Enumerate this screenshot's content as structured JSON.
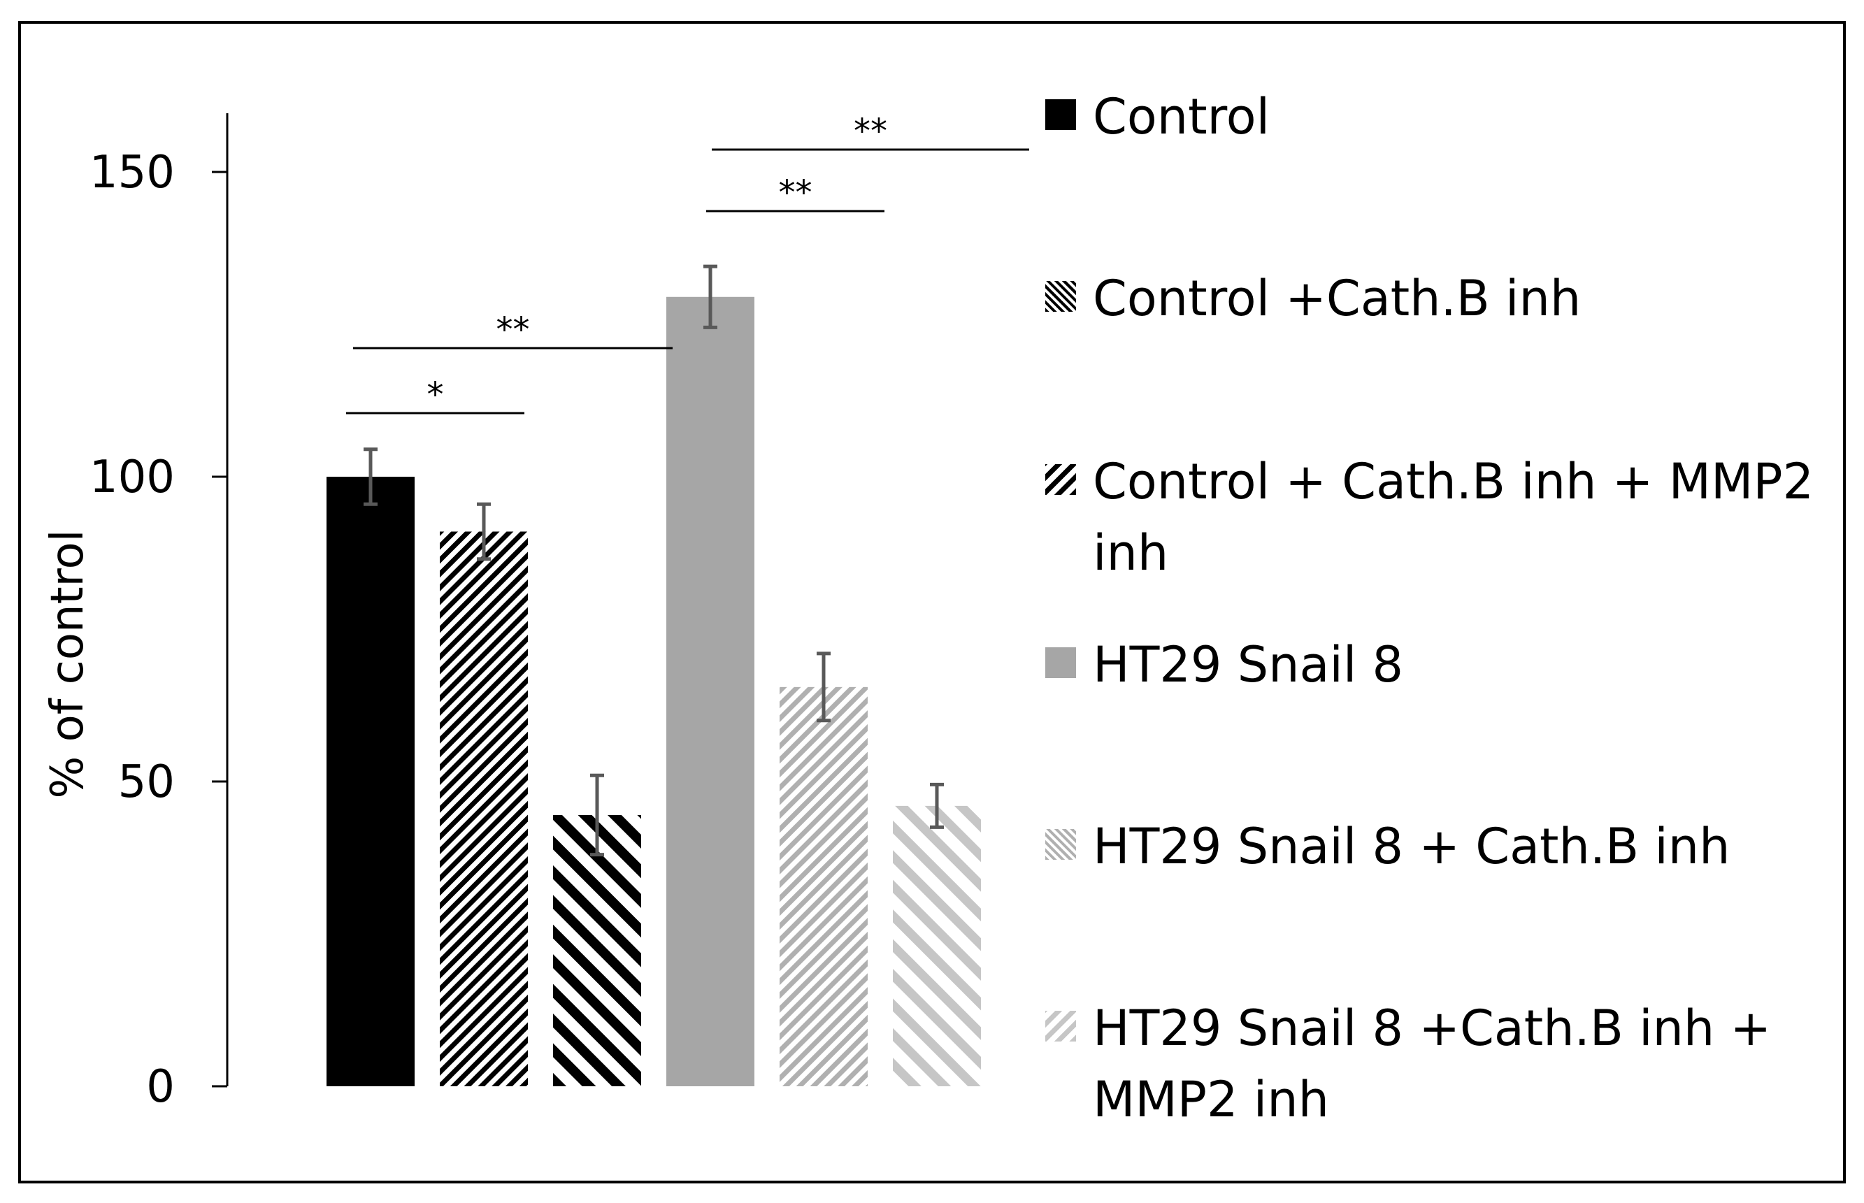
{
  "chart_data": {
    "type": "bar",
    "title": "",
    "xlabel": "",
    "ylabel": "% of control",
    "ylim": [
      0,
      160
    ],
    "yticks": [
      0,
      50,
      100,
      150
    ],
    "grid": false,
    "legend_position": "right",
    "series": [
      {
        "name": "Control",
        "value": 100,
        "error": 4.5,
        "color": "#000000",
        "pattern": "solid"
      },
      {
        "name": "Control +Cath.B inh",
        "value": 91,
        "error": 4.5,
        "color": "#000000",
        "pattern": "fine-diagonal"
      },
      {
        "name": "Control + Cath.B inh + MMP2 inh",
        "value": 44.5,
        "error": 6.5,
        "color": "#000000",
        "pattern": "wide-diagonal"
      },
      {
        "name": "HT29 Snail 8",
        "value": 129.5,
        "error": 5,
        "color": "#a6a6a6",
        "pattern": "solid"
      },
      {
        "name": "HT29 Snail 8 + Cath.B inh",
        "value": 65.5,
        "error": 5.5,
        "color": "#a6a6a6",
        "pattern": "fine-diagonal"
      },
      {
        "name": "HT29 Snail 8 +Cath.B inh + MMP2 inh",
        "value": 46,
        "error": 3.5,
        "color": "#bfbfbf",
        "pattern": "wide-diagonal"
      }
    ],
    "significance": [
      {
        "from": 0,
        "to": 1,
        "label": "*"
      },
      {
        "from": 0,
        "to": 3,
        "label": "**"
      },
      {
        "from": 3,
        "to": 4,
        "label": "**"
      },
      {
        "from": 3,
        "to": 5,
        "label": "**"
      }
    ]
  }
}
